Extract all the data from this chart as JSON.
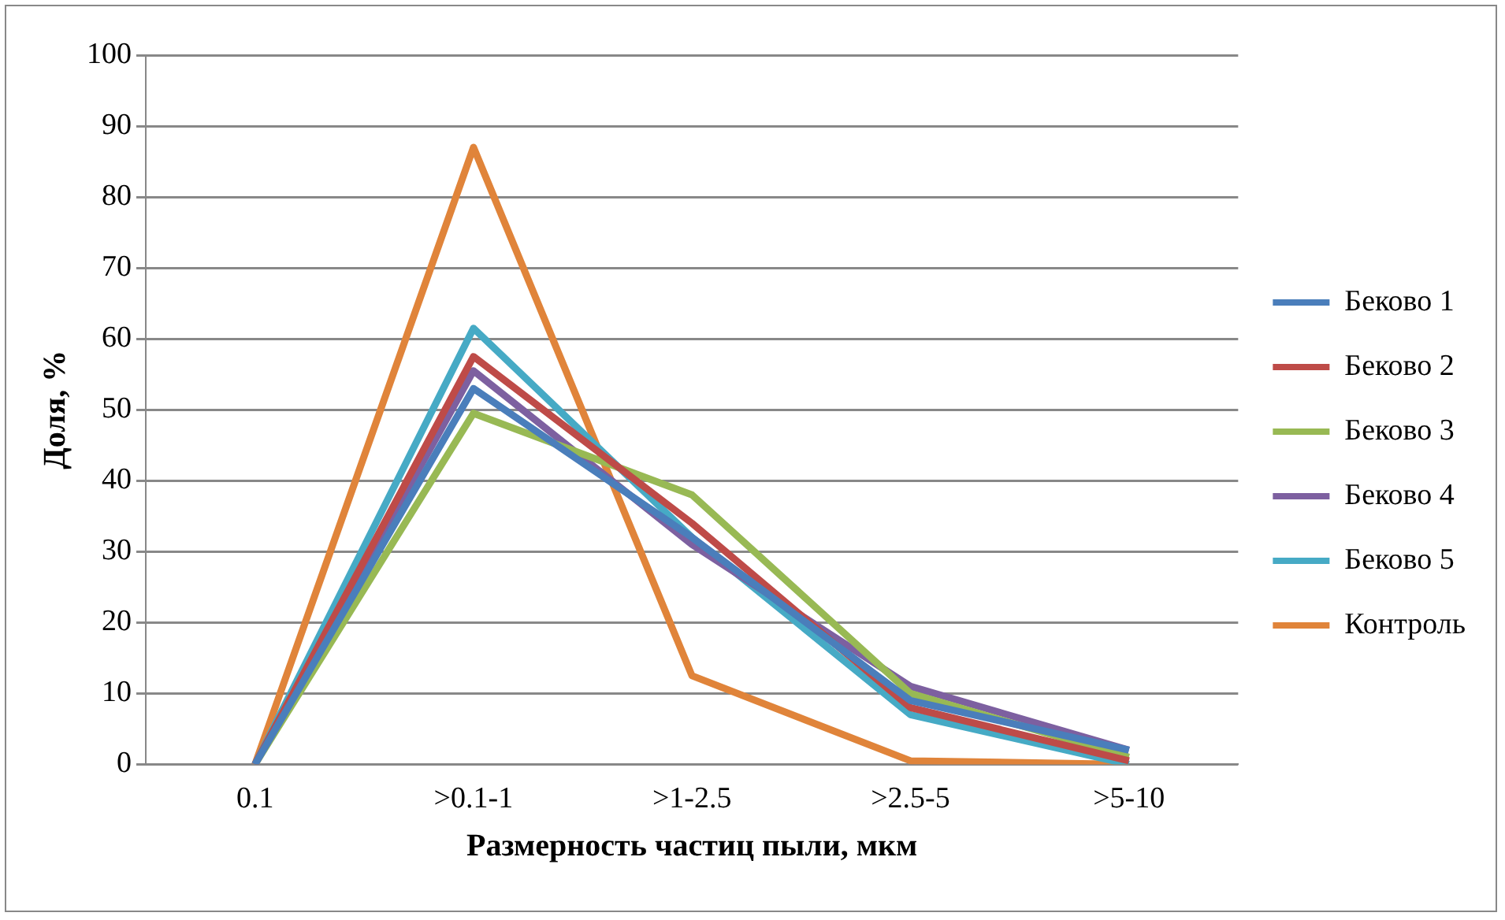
{
  "chart_data": {
    "type": "line",
    "xlabel": "Размерность частиц пыли, мкм",
    "ylabel": "Доля, %",
    "categories": [
      "0.1",
      ">0.1-1",
      ">1-2.5",
      ">2.5-5",
      ">5-10"
    ],
    "series": [
      {
        "name": "Беково 1",
        "color": "#4a7ebb",
        "values": [
          0,
          53,
          32,
          9,
          2
        ]
      },
      {
        "name": "Беково 2",
        "color": "#be4b48",
        "values": [
          0,
          57.5,
          34,
          8,
          0.5
        ]
      },
      {
        "name": "Беково 3",
        "color": "#98b954",
        "values": [
          0,
          49.5,
          38,
          10,
          1
        ]
      },
      {
        "name": "Беково 4",
        "color": "#7d60a0",
        "values": [
          0,
          55.5,
          31,
          11,
          2
        ]
      },
      {
        "name": "Беково 5",
        "color": "#46aac5",
        "values": [
          0,
          61.5,
          32,
          7,
          0
        ]
      },
      {
        "name": "Контроль",
        "color": "#e0843a",
        "values": [
          0,
          87,
          12.5,
          0.5,
          0
        ]
      }
    ],
    "ylim": [
      0,
      100
    ],
    "yticks": [
      0,
      10,
      20,
      30,
      40,
      50,
      60,
      70,
      80,
      90,
      100
    ],
    "grid": "y",
    "legend": "right",
    "marker": "none",
    "line_style": "solid"
  }
}
